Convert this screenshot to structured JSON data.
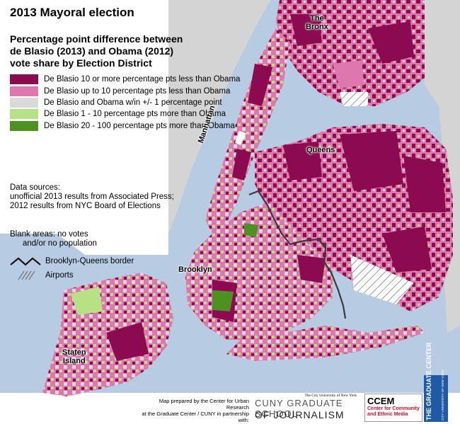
{
  "title": "2013 Mayoral election",
  "subtitle": [
    "Percentage point difference between",
    "de Blasio (2013) and Obama (2012)",
    "vote share by Election District"
  ],
  "legend": [
    {
      "label": "De Blasio 10 or more percentage pts less than Obama",
      "color": "#8b0a50"
    },
    {
      "label": "De Blasio up to 10 percentage pts less than Obama",
      "color": "#de77ae"
    },
    {
      "label": "De Blasio and Obama w/in +/- 1 percentage point",
      "color": "#d9d9d9"
    },
    {
      "label": "De Blasio 1 - 10 percentage pts more than Obama",
      "color": "#b8e186"
    },
    {
      "label": "De Blasio 20 - 100 percentage pts more than Obama",
      "color": "#4d9221"
    }
  ],
  "sources": {
    "heading": "Data sources:",
    "line1": "unofficial 2013 results from Associated Press;",
    "line2": "2012 results from NYC Board of Elections"
  },
  "blank_note": {
    "line1": "Blank areas: no votes",
    "line2": "and/or no population"
  },
  "border_key": {
    "label": "Brooklyn-Queens border",
    "icon": "zigzag-line-icon"
  },
  "airport_key": {
    "label": "Airports",
    "icon": "hatch-pattern-icon"
  },
  "boroughs": {
    "bronx": [
      "The",
      "Bronx"
    ],
    "manhattan": "Manhattan",
    "queens": "Queens",
    "brooklyn": "Brooklyn",
    "staten": [
      "Staten",
      "Island"
    ]
  },
  "credit": [
    "Map prepared by the Center for Urban Research",
    "at the Graduate Center / CUNY in partnership with:"
  ],
  "logos": {
    "cuny_top": "The City University of New York",
    "cuny_line1": "CUNY GRADUATE SCHOOL",
    "cuny_line2": "OF JOURNALISM",
    "ccem_line1": "CCEM",
    "ccem_line2a": "Center for Community",
    "ccem_line2b": "and Ethnic Media",
    "gc_text": "THE GRADUATE CENTER",
    "gc_sub": "CITY UNIVERSITY OF NEW YORK"
  },
  "colors": {
    "water": "#b7cbe3",
    "land": "#d4d4d4",
    "border_line": "#3a3a3a"
  }
}
